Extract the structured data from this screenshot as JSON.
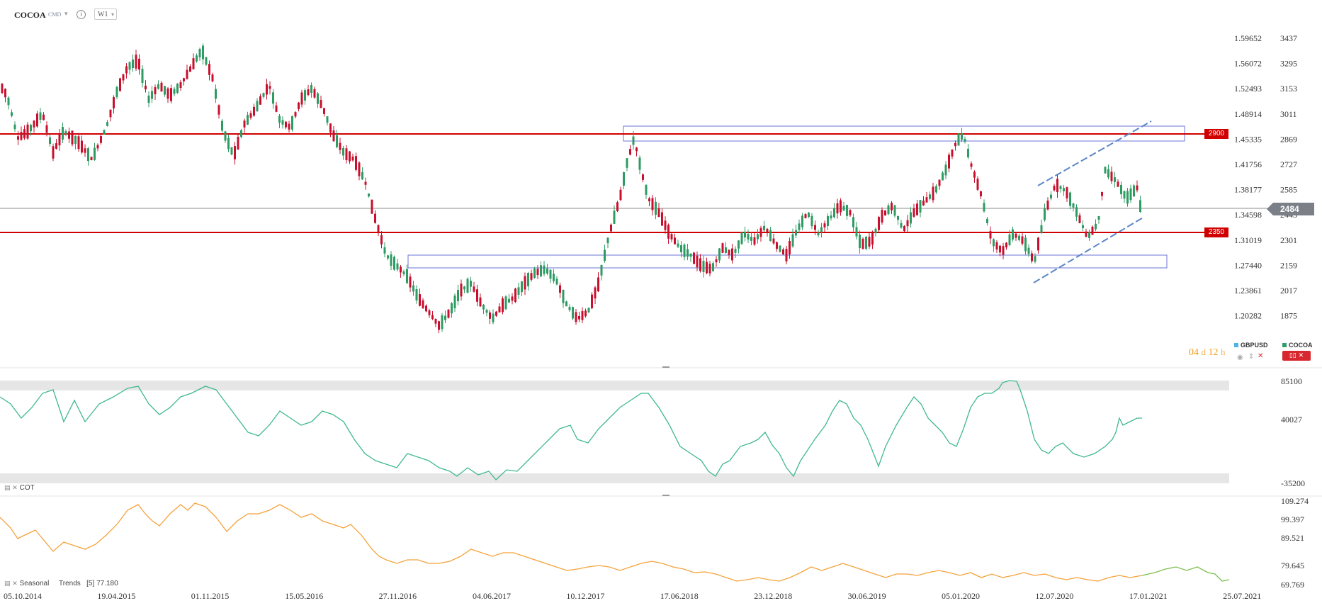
{
  "header": {
    "symbol": "COCOA",
    "sub": "CMD",
    "info_glyph": "i",
    "timeframe": "W1"
  },
  "price_axis": {
    "left_labels": [
      "1.59652",
      "1.56072",
      "1.52493",
      "1.48914",
      "1.45335",
      "1.41756",
      "1.38177",
      "1.34598",
      "1.31019",
      "1.27440",
      "1.23861",
      "1.20282"
    ],
    "right_labels": [
      "3437",
      "3295",
      "3153",
      "3011",
      "2869",
      "2727",
      "2585",
      "2443",
      "2301",
      "2159",
      "2017",
      "1875"
    ]
  },
  "levels": {
    "upper": "2900",
    "lower": "2350",
    "last_price": "2484"
  },
  "timer": {
    "days": "04",
    "d_unit": "d",
    "hours": "12",
    "h_unit": "h"
  },
  "legend": {
    "compare": "GBPUSD",
    "main": "COCOA",
    "compare_color": "#4bb3e6",
    "main_color": "#2f9e6b"
  },
  "cot": {
    "label": "COT",
    "axis_labels": [
      "85100",
      "40027",
      "-35200"
    ]
  },
  "seasonal": {
    "label": "Seasonal",
    "trends_label": "Trends",
    "trends_param": "[5]",
    "trends_value": "77.180",
    "axis_labels": [
      "109.274",
      "99.397",
      "89.521",
      "79.645",
      "69.769"
    ]
  },
  "x_axis": [
    "05.10.2014",
    "19.04.2015",
    "01.11.2015",
    "15.05.2016",
    "27.11.2016",
    "04.06.2017",
    "10.12.2017",
    "17.06.2018",
    "23.12.2018",
    "30.06.2019",
    "05.01.2020",
    "12.07.2020",
    "17.01.2021",
    "25.07.2021"
  ],
  "colors": {
    "up": "#2e9b63",
    "down": "#c8102e",
    "level": "#d10000",
    "zone": "#6b74d6",
    "cot_line": "#3fb98c",
    "seasonal_line": "#f5a23b",
    "seasonal_projection": "#7fbf4d"
  },
  "icons": [
    "caret-down-icon",
    "info-icon",
    "eye-icon",
    "move-icon",
    "close-icon",
    "panel-collapse-icon"
  ]
}
